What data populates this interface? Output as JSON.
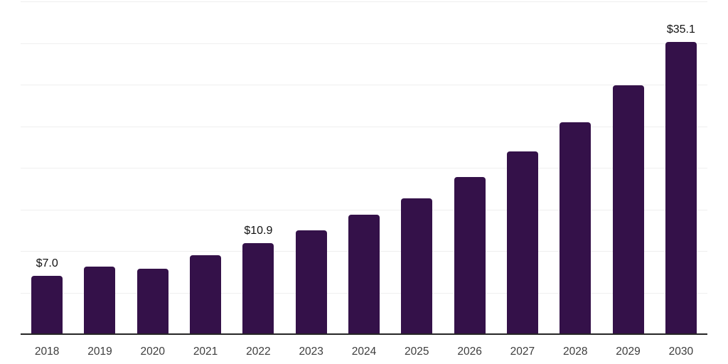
{
  "colors": {
    "background": "#ffffff",
    "bar": "#341149",
    "gridline": "#efefef",
    "axis_line": "#262626",
    "tick_label": "#3d3d3d",
    "value_label": "#111111"
  },
  "chart_data": {
    "type": "bar",
    "title": "",
    "xlabel": "",
    "ylabel": "",
    "categories": [
      "2018",
      "2019",
      "2020",
      "2021",
      "2022",
      "2023",
      "2024",
      "2025",
      "2026",
      "2027",
      "2028",
      "2029",
      "2030"
    ],
    "values": [
      7.0,
      8.1,
      7.9,
      9.5,
      10.9,
      12.5,
      14.4,
      16.3,
      18.9,
      22.0,
      25.5,
      29.9,
      35.1
    ],
    "data_labels": [
      "$7.0",
      "",
      "",
      "",
      "$10.9",
      "",
      "",
      "",
      "",
      "",
      "",
      "",
      "$35.1"
    ],
    "ylim": [
      0,
      40
    ],
    "gridline_step": 5,
    "grid": "horizontal",
    "y_axis_tick_labels_visible": false,
    "legend": "none"
  }
}
